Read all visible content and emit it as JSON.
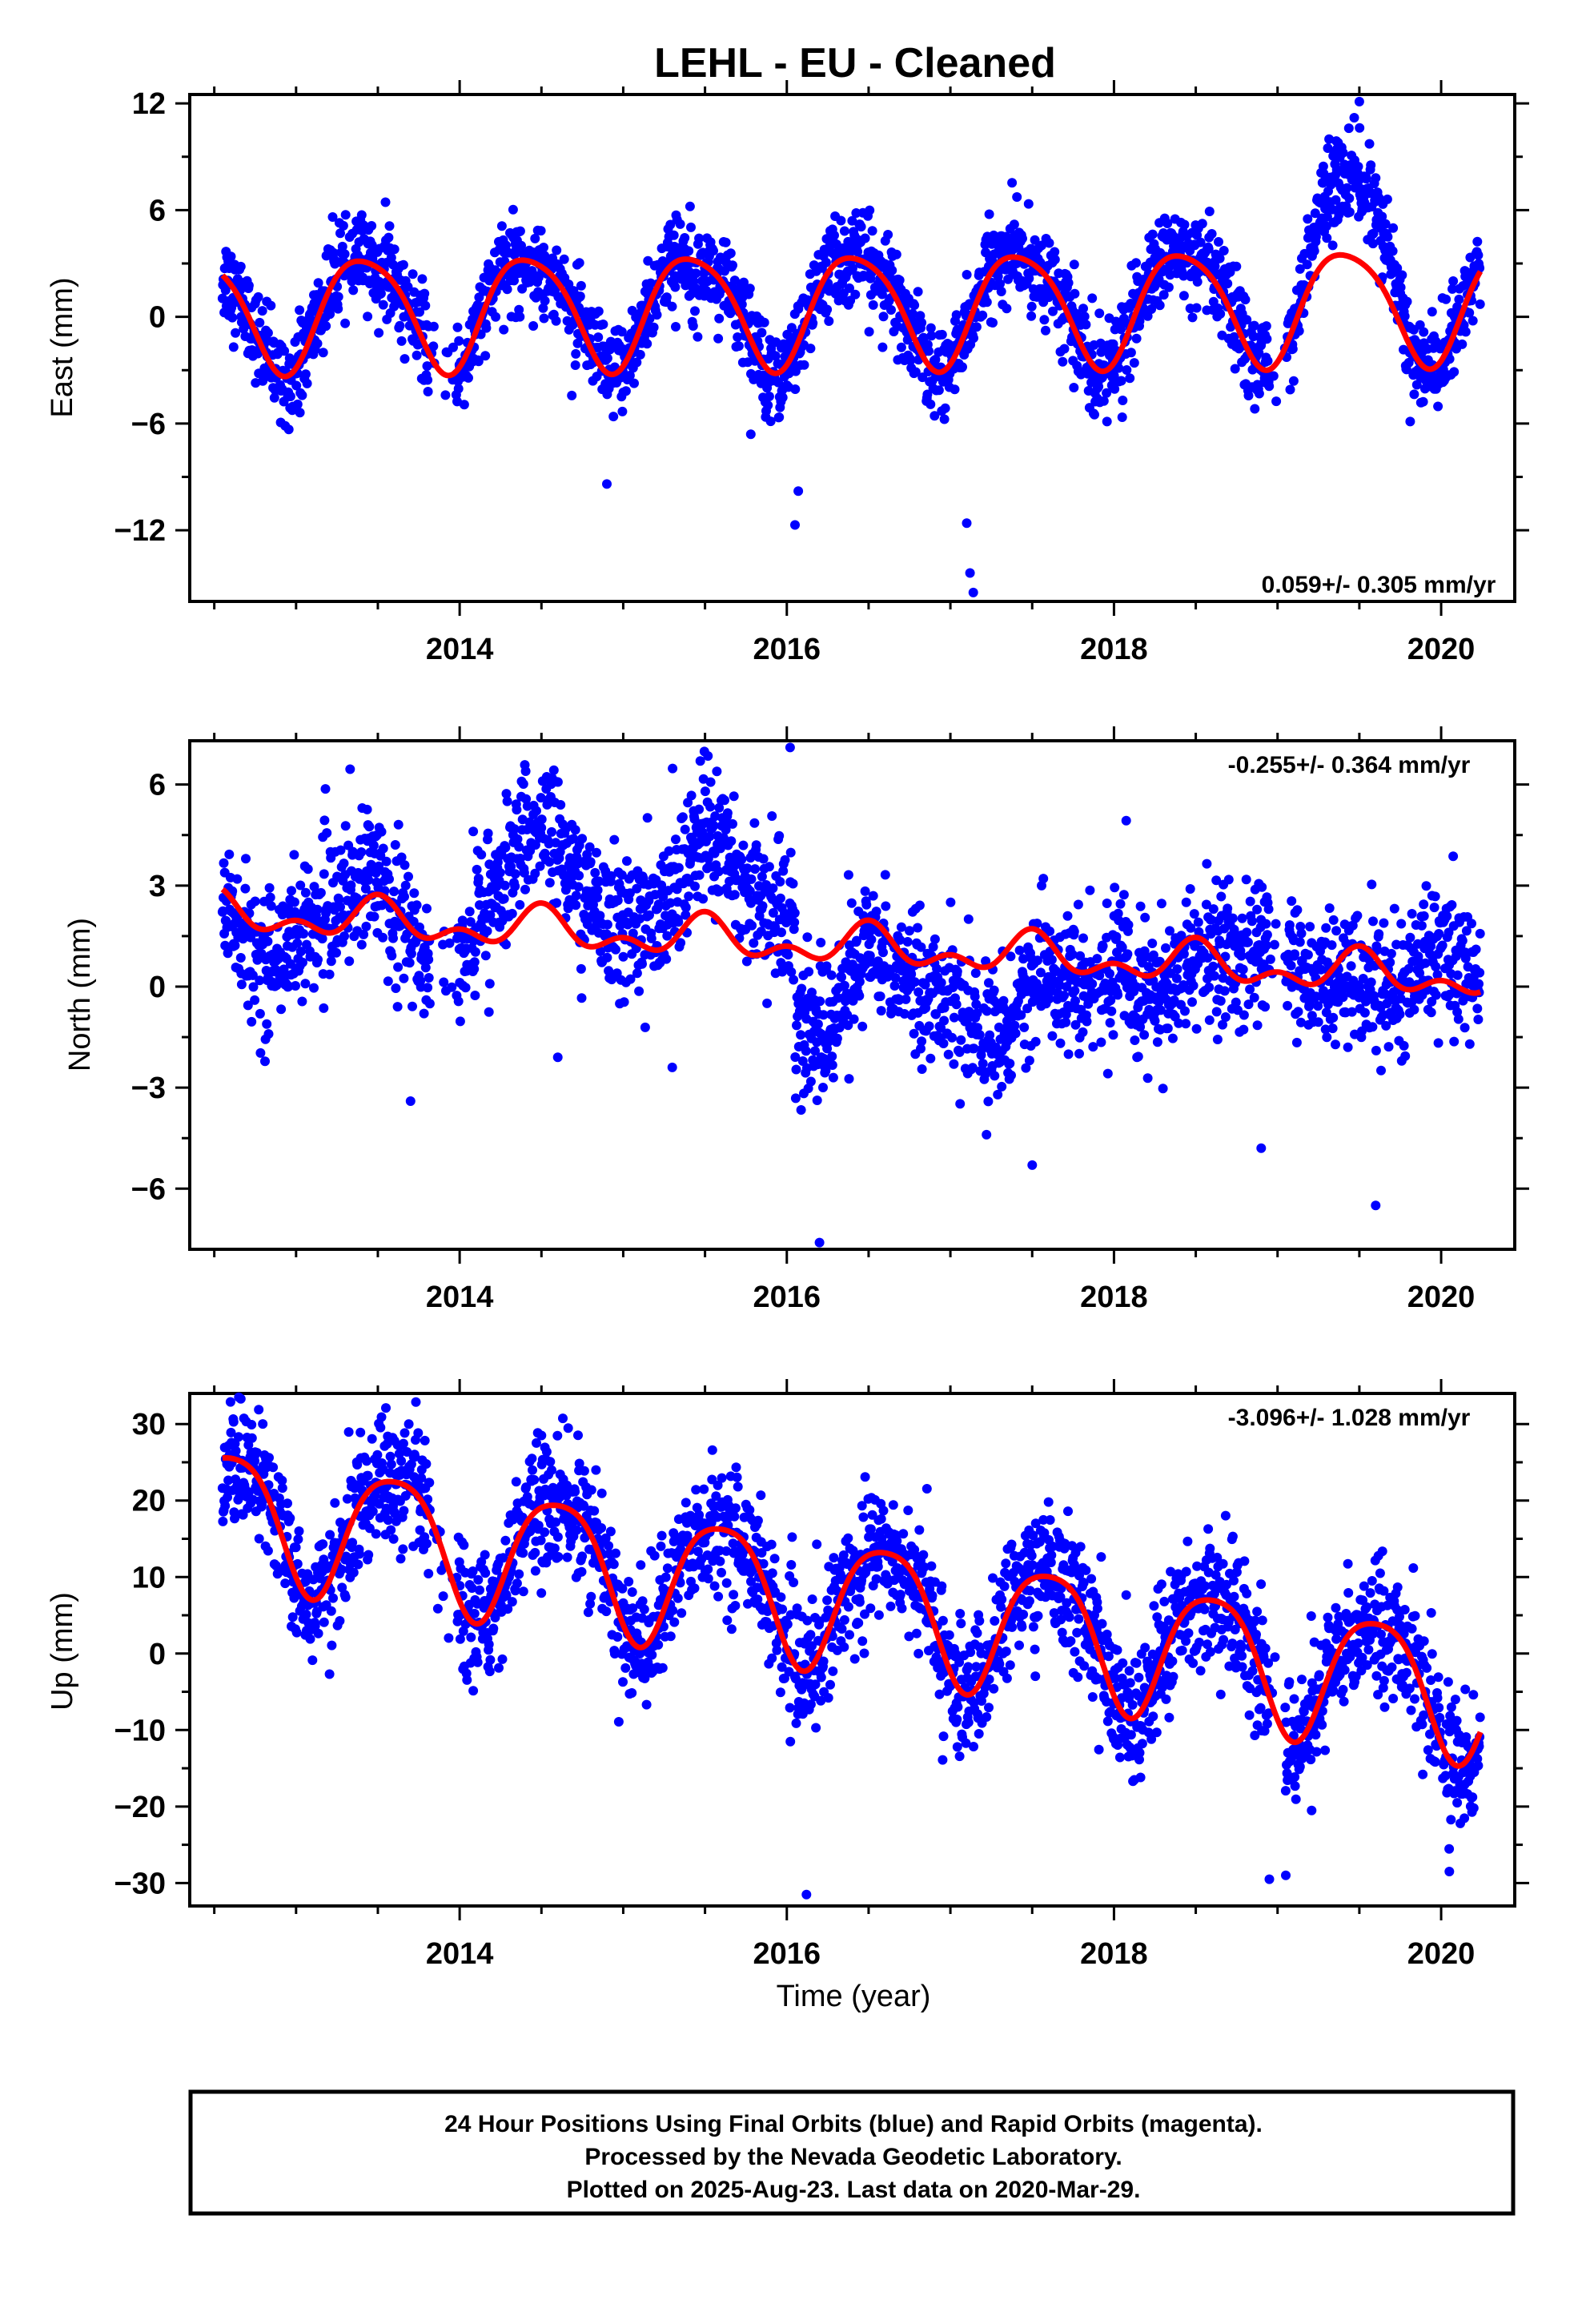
{
  "title": "LEHL  - EU - Cleaned",
  "colors": {
    "points": "#0000ff",
    "fit": "#ff0000",
    "frame": "#000000"
  },
  "footer": {
    "line1": "24 Hour Positions Using Final Orbits (blue) and Rapid Orbits (magenta).",
    "line2": "Processed by the Nevada Geodetic Laboratory.",
    "line3": "Plotted on 2025-Aug-23. Last data on 2020-Mar-29."
  },
  "chart_data": [
    {
      "type": "scatter",
      "name": "east",
      "ylabel": "East (mm)",
      "xlabel": "",
      "xlim": [
        2012.35,
        2020.45
      ],
      "ylim": [
        -16,
        12.5
      ],
      "x_ticks": [
        "2014",
        "2016",
        "2018",
        "2020"
      ],
      "y_ticks": [
        "12",
        "6",
        "0",
        "−6",
        "−12"
      ],
      "rate_text": "0.059+/- 0.305 mm/yr",
      "rate_position": "bottom-right",
      "data_start": 2012.55,
      "data_end": 2020.24,
      "seasonal_fit": {
        "mean": 0.5,
        "trend_mm_per_yr": 0.059,
        "annual_amp": 3.2,
        "annual_peak": 0.42,
        "semiannual_amp": 0.5,
        "semiannual_peak": 0.2
      },
      "outliers": [
        [
          2014.9,
          -9.4
        ],
        [
          2016.05,
          -11.7
        ],
        [
          2016.07,
          -9.8
        ],
        [
          2017.1,
          -11.6
        ],
        [
          2017.12,
          -14.4
        ],
        [
          2017.14,
          -15.5
        ],
        [
          2015.78,
          -6.6
        ],
        [
          2019.5,
          12.1
        ],
        [
          2018.9,
          -1.5
        ],
        [
          2020.02,
          -3.4
        ]
      ]
    },
    {
      "type": "scatter",
      "name": "north",
      "ylabel": "North (mm)",
      "xlabel": "",
      "xlim": [
        2012.35,
        2020.45
      ],
      "ylim": [
        -7.8,
        7.3
      ],
      "x_ticks": [
        "2014",
        "2016",
        "2018",
        "2020"
      ],
      "y_ticks": [
        "6",
        "3",
        "0",
        "−3",
        "−6"
      ],
      "rate_text": "-0.255+/- 0.364 mm/yr",
      "rate_position": "top-right",
      "data_start": 2012.55,
      "data_end": 2020.24,
      "seasonal_fit": {
        "mean": 1.3,
        "trend_mm_per_yr": -0.255,
        "annual_amp": 0.45,
        "annual_peak": 0.5,
        "semiannual_amp": 0.35,
        "semiannual_peak": 0.0
      },
      "outliers": [
        [
          2016.02,
          7.1
        ],
        [
          2016.2,
          -7.6
        ],
        [
          2013.7,
          -3.4
        ],
        [
          2015.3,
          -2.4
        ],
        [
          2014.6,
          -2.1
        ],
        [
          2019.6,
          -6.5
        ],
        [
          2018.9,
          -4.8
        ],
        [
          2017.5,
          -5.3
        ]
      ]
    },
    {
      "type": "scatter",
      "name": "up",
      "ylabel": "Up (mm)",
      "xlabel": "Time (year)",
      "xlim": [
        2012.35,
        2020.45
      ],
      "ylim": [
        -33,
        34
      ],
      "x_ticks": [
        "2014",
        "2016",
        "2018",
        "2020"
      ],
      "y_ticks": [
        "30",
        "20",
        "10",
        "0",
        "−10",
        "−20",
        "−30"
      ],
      "rate_text": "-3.096+/- 1.028 mm/yr",
      "rate_position": "top-right",
      "data_start": 2012.55,
      "data_end": 2020.24,
      "seasonal_fit": {
        "mean": 8.0,
        "trend_mm_per_yr": -3.096,
        "annual_amp": 8.5,
        "annual_peak": 0.6,
        "semiannual_amp": 1.5,
        "semiannual_peak": 0.35
      },
      "outliers": [
        [
          2016.12,
          -31.5
        ],
        [
          2018.95,
          -29.5
        ],
        [
          2019.05,
          -29.0
        ],
        [
          2020.05,
          -28.5
        ],
        [
          2012.65,
          33.5
        ],
        [
          2017.6,
          19.8
        ],
        [
          2014.5,
          28.5
        ]
      ]
    }
  ]
}
